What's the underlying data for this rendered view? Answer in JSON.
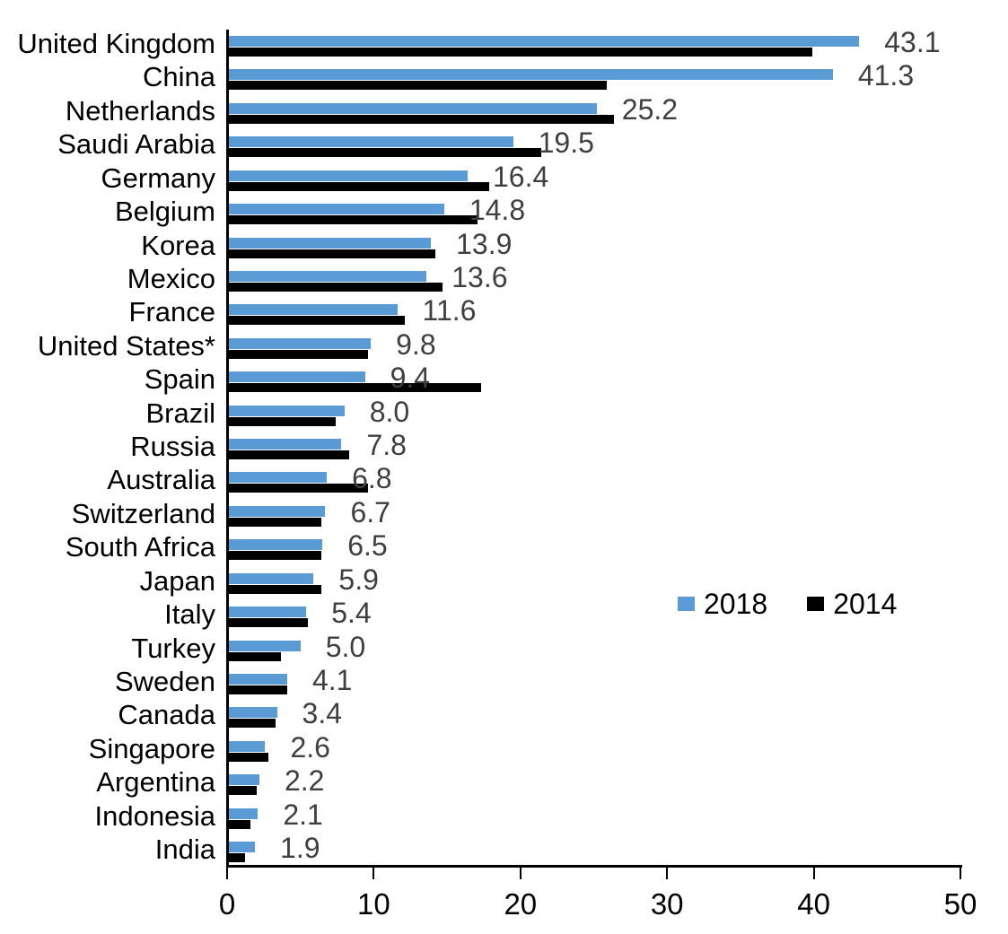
{
  "chart_data": {
    "type": "bar",
    "orientation": "horizontal",
    "title": "",
    "xlabel": "",
    "ylabel": "",
    "xlim": [
      0,
      50
    ],
    "x_ticks": [
      0,
      10,
      20,
      30,
      40,
      50
    ],
    "grid": false,
    "categories": [
      "United Kingdom",
      "China",
      "Netherlands",
      "Saudi Arabia",
      "Germany",
      "Belgium",
      "Korea",
      "Mexico",
      "France",
      "United States*",
      "Spain",
      "Brazil",
      "Russia",
      "Australia",
      "Switzerland",
      "South Africa",
      "Japan",
      "Italy",
      "Turkey",
      "Sweden",
      "Canada",
      "Singapore",
      "Argentina",
      "Indonesia",
      "India"
    ],
    "series": [
      {
        "name": "2018",
        "color": "#5B9BD5",
        "values": [
          43.1,
          41.3,
          25.2,
          19.5,
          16.4,
          14.8,
          13.9,
          13.6,
          11.6,
          9.8,
          9.4,
          8.0,
          7.8,
          6.8,
          6.7,
          6.5,
          5.9,
          5.4,
          5.0,
          4.1,
          3.4,
          2.6,
          2.2,
          2.1,
          1.9
        ]
      },
      {
        "name": "2014",
        "color": "#000000",
        "values": [
          39.9,
          25.9,
          26.4,
          21.4,
          17.9,
          17.1,
          14.2,
          14.7,
          12.1,
          9.6,
          17.3,
          7.4,
          8.3,
          9.6,
          6.4,
          6.4,
          6.4,
          5.5,
          3.7,
          4.1,
          3.3,
          2.8,
          2.0,
          1.6,
          1.2
        ]
      }
    ],
    "data_labels": {
      "series": "2018",
      "values": [
        "43.1",
        "41.3",
        "25.2",
        "19.5",
        "16.4",
        "14.8",
        "13.9",
        "13.6",
        "11.6",
        "9.8",
        "9.4",
        "8.0",
        "7.8",
        "6.8",
        "6.7",
        "6.5",
        "5.9",
        "5.4",
        "5.0",
        "4.1",
        "3.4",
        "2.6",
        "2.2",
        "2.1",
        "1.9"
      ]
    },
    "legend": {
      "position": "middle-right",
      "entries": [
        {
          "label": "2018",
          "color": "#5B9BD5"
        },
        {
          "label": "2014",
          "color": "#000000"
        }
      ]
    }
  },
  "colors": {
    "background": "#FFFFFF",
    "axis": "#000000",
    "data_label": "#3F3F3F",
    "series_2018": "#5B9BD5",
    "series_2014": "#000000"
  }
}
